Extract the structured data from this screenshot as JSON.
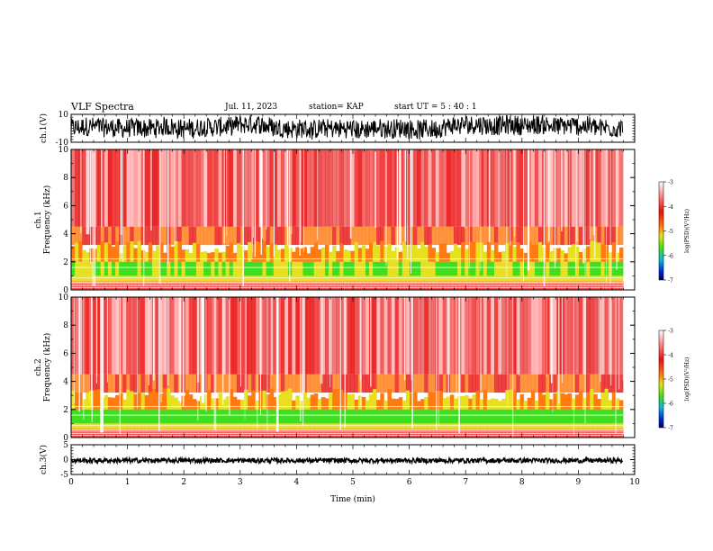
{
  "header": {
    "title": "VLF Spectra",
    "date": "Jul. 11, 2023",
    "station": "station= KAP",
    "start_ut": "start UT =  5 : 40 : 1"
  },
  "colors": {
    "background": "#ffffff",
    "trace": "#000000",
    "spec_white": "#ffffff",
    "spec_pink": "#ff9a9a",
    "spec_red": "#e91010",
    "spec_orange": "#ff7a10",
    "spec_yellow": "#e6e020",
    "spec_green": "#3de020"
  },
  "chart_data": [
    {
      "type": "line",
      "panel": "ch1-waveform",
      "ylabel": "ch.1(V)",
      "ylim": [
        -10,
        10
      ],
      "ytick_labels": [
        "10",
        "-10"
      ],
      "xlim": [
        0,
        10
      ],
      "description_series": "dense waveform, amplitude mostly between -6 and +9 V"
    },
    {
      "type": "heatmap",
      "panel": "ch1-spectrogram",
      "ylabel": "ch.1 Frequency (kHz)",
      "ylim": [
        0,
        10
      ],
      "ytick_labels": [
        "0",
        "2",
        "4",
        "6",
        "8",
        "10"
      ],
      "xlim": [
        0,
        9.8
      ],
      "colorbar": {
        "label": "log(PSD)(V²/Hz)",
        "range": [
          -7,
          -3
        ],
        "tick_labels": [
          "-3",
          "-4",
          "-5",
          "-6",
          "-7"
        ]
      },
      "bands": [
        {
          "freq_khz": [
            0,
            0.5
          ],
          "level": "mixed white/red lines"
        },
        {
          "freq_khz": [
            0.7,
            1.2
          ],
          "level": "yellow/green"
        },
        {
          "freq_khz": [
            1.2,
            3.2
          ],
          "level": "green/yellow"
        },
        {
          "freq_khz": [
            3.2,
            4.5
          ],
          "level": "red/orange"
        },
        {
          "freq_khz": [
            4.5,
            10
          ],
          "level": "red/pink"
        }
      ]
    },
    {
      "type": "heatmap",
      "panel": "ch2-spectrogram",
      "ylabel": "ch.2 Frequency (kHz)",
      "ylim": [
        0,
        10
      ],
      "ytick_labels": [
        "0",
        "2",
        "4",
        "6",
        "8",
        "10"
      ],
      "xlim": [
        0,
        9.8
      ],
      "colorbar": {
        "label": "log(PSD)(V²/Hz)",
        "range": [
          -7,
          -3
        ],
        "tick_labels": [
          "-3",
          "-4",
          "-5",
          "-6",
          "-7"
        ]
      },
      "bands": [
        {
          "freq_khz": [
            0,
            0.6
          ],
          "level": "mixed white/red lines"
        },
        {
          "freq_khz": [
            0.6,
            1.0
          ],
          "level": "yellow"
        },
        {
          "freq_khz": [
            1.0,
            2.0
          ],
          "level": "green"
        },
        {
          "freq_khz": [
            2.0,
            3.2
          ],
          "level": "yellow/orange"
        },
        {
          "freq_khz": [
            3.2,
            10
          ],
          "level": "red/pink"
        }
      ]
    },
    {
      "type": "line",
      "panel": "ch3-waveform",
      "ylabel": "ch.3(V)",
      "ylim": [
        -5,
        5
      ],
      "ytick_labels": [
        "5",
        "0",
        "-5"
      ],
      "xlim": [
        0,
        10
      ],
      "description_series": "narrow waveform band, roughly -1 to +0.5 V"
    }
  ],
  "xaxis": {
    "label": "Time (min)",
    "tick_labels": [
      "0",
      "1",
      "2",
      "3",
      "4",
      "5",
      "6",
      "7",
      "8",
      "9",
      "10"
    ]
  }
}
